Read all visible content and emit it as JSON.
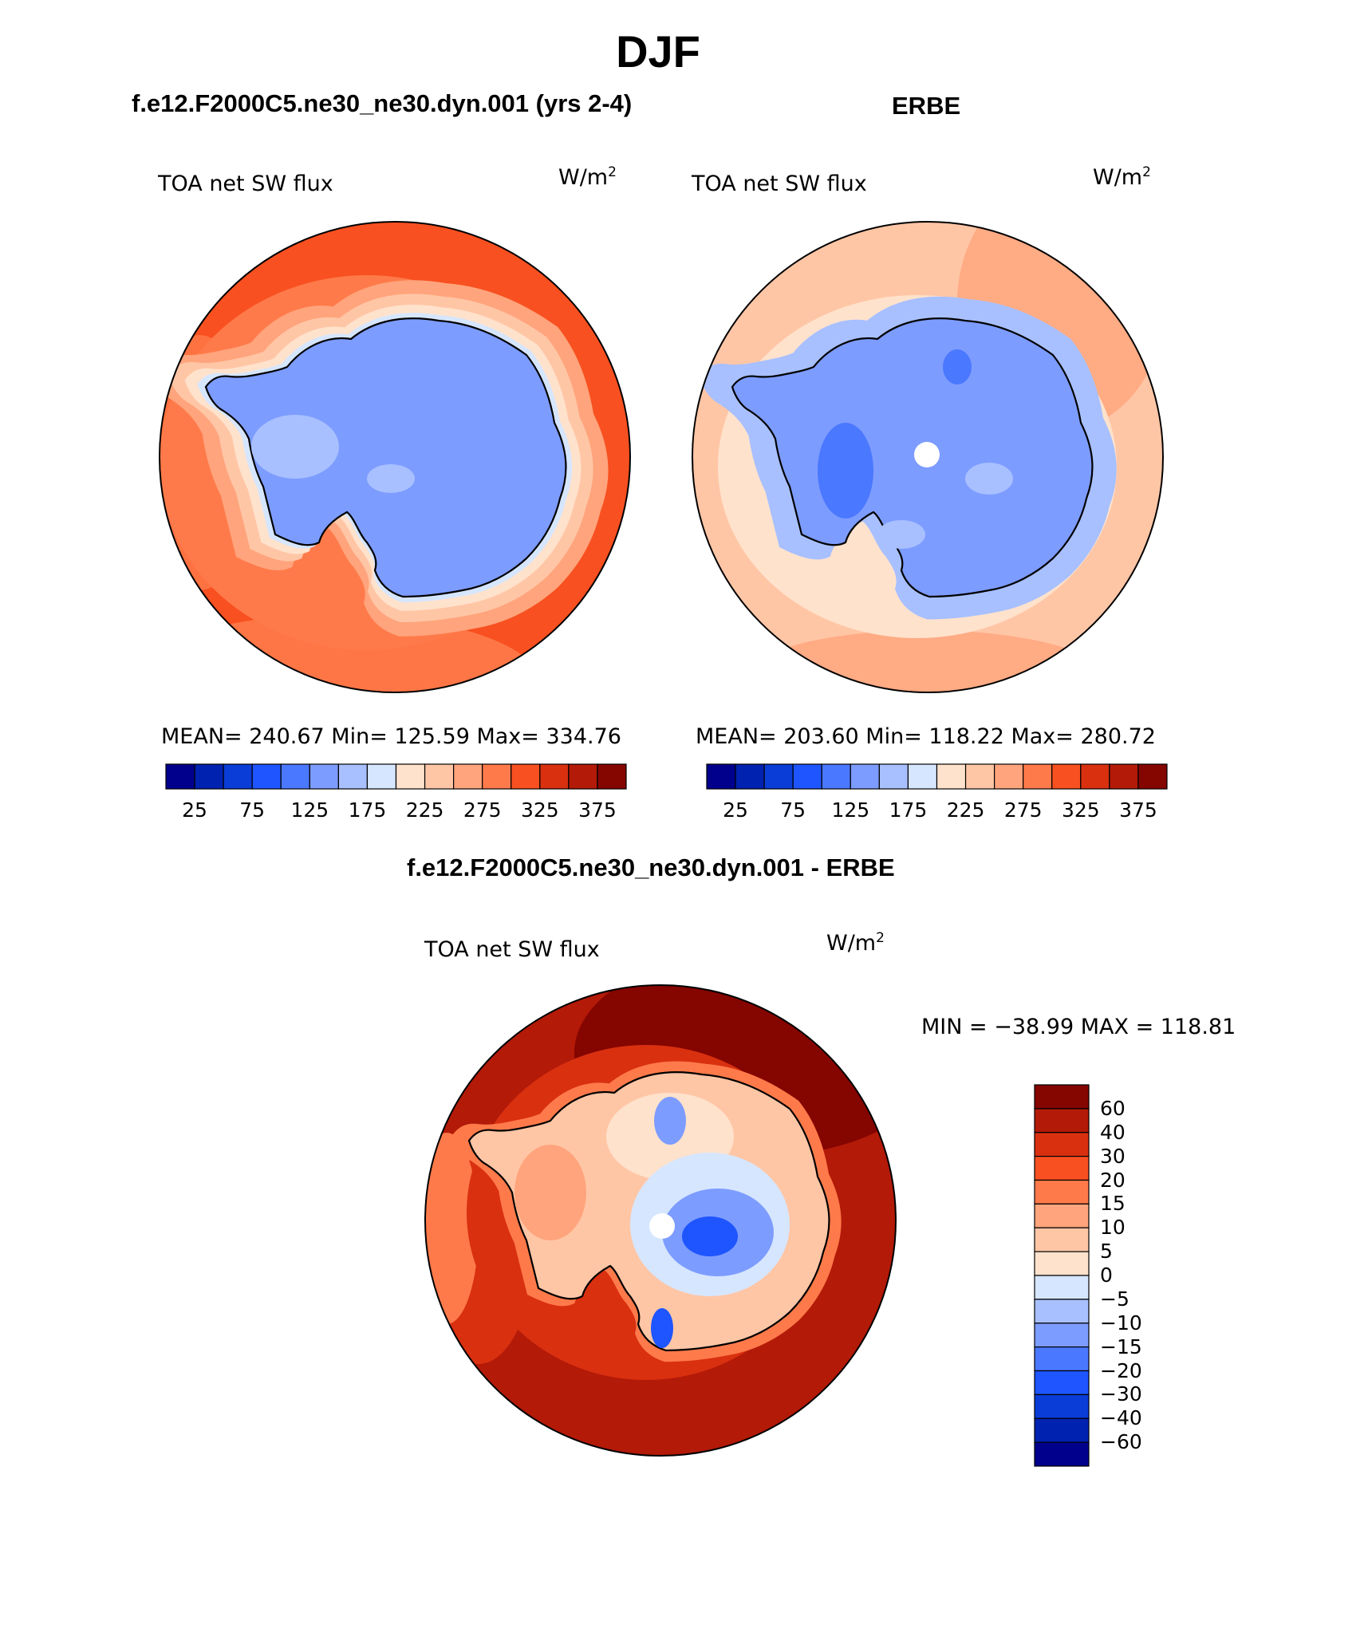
{
  "title": "DJF",
  "panels": {
    "model": {
      "title": "f.e12.F2000C5.ne30_ne30.dyn.001 (yrs 2-4)",
      "variable": "TOA net SW flux",
      "units": "W/m",
      "units_sup": "2",
      "stats": "MEAN= 240.67   Min= 125.59   Max= 334.76"
    },
    "obs": {
      "title": "ERBE",
      "variable": "TOA net SW flux",
      "units": "W/m",
      "units_sup": "2",
      "stats": "MEAN= 203.60   Min= 118.22   Max= 280.72"
    },
    "diff": {
      "title": "f.e12.F2000C5.ne30_ne30.dyn.001 - ERBE",
      "variable": "TOA net SW flux",
      "units": "W/m",
      "units_sup": "2",
      "minmax": "MIN = −38.99 MAX = 118.81"
    }
  },
  "colorbar_main": {
    "colors": [
      "#00008c",
      "#0022b0",
      "#0a3cd8",
      "#1e55ff",
      "#4a78ff",
      "#7d9cff",
      "#a8c0ff",
      "#d6e6ff",
      "#ffe2cc",
      "#ffc6a6",
      "#ffa47c",
      "#ff7a4a",
      "#f85020",
      "#d93010",
      "#b31a08",
      "#850500"
    ],
    "tick_labels": [
      "25",
      "75",
      "125",
      "175",
      "225",
      "275",
      "325",
      "375"
    ]
  },
  "colorbar_diff": {
    "colors": [
      "#850500",
      "#b31a08",
      "#d93010",
      "#f85020",
      "#ff7a4a",
      "#ffa47c",
      "#ffc6a6",
      "#ffe2cc",
      "#d6e6ff",
      "#a8c0ff",
      "#7d9cff",
      "#4a78ff",
      "#1e55ff",
      "#0a3cd8",
      "#0022b0",
      "#00008c"
    ],
    "tick_labels": [
      "60",
      "40",
      "30",
      "20",
      "15",
      "10",
      "5",
      "0",
      "−5",
      "−10",
      "−15",
      "−20",
      "−30",
      "−40",
      "−60"
    ]
  },
  "map_colors": {
    "model_ocean": "#f85020",
    "model_ocean_light": "#ff7a4a",
    "model_edge": "#ffa47c",
    "model_ice_edge": "#ffc6a6",
    "model_ice": "#7d9cff",
    "model_ice_light": "#a8c0ff",
    "obs_ocean": "#ffc6a6",
    "obs_ocean_dark": "#ffa47c",
    "obs_ring": "#ffe2cc",
    "obs_ice_edge": "#a8c0ff",
    "obs_ice": "#7d9cff",
    "obs_ice_dark": "#4a78ff",
    "diff_ocean": "#b31a08",
    "diff_ocean_dark": "#850500",
    "diff_ocean_mid": "#d93010",
    "diff_land_warm": "#ffc6a6",
    "diff_land_light": "#ffe2cc",
    "diff_land_cool": "#d6e6ff",
    "diff_land_blue": "#7d9cff",
    "diff_land_deep": "#1e55ff",
    "coastline": "#000000",
    "pole_hole": "#ffffff"
  }
}
